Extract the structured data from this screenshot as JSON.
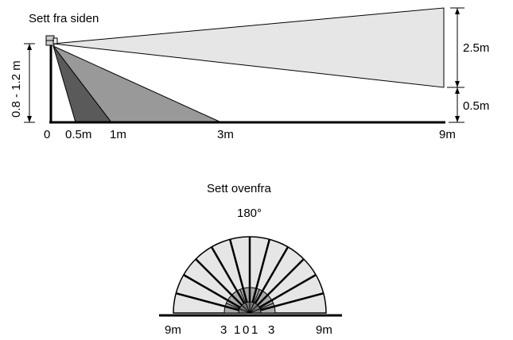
{
  "side_view": {
    "title": "Sett fra siden",
    "height_label": "0.8 - 1.2 m",
    "right_top_label": "2.5m",
    "right_bottom_label": "0.5m",
    "ticks": [
      "0",
      "0.5m",
      "1m",
      "3m",
      "9m"
    ]
  },
  "top_view": {
    "title": "Sett ovenfra",
    "angle_label": "180°",
    "ticks_left": [
      "9m",
      "3",
      "1",
      "0"
    ],
    "ticks_right": [
      "1",
      "3",
      "9m"
    ]
  },
  "colors": {
    "far_zone": "#e6e6e6",
    "mid_zone": "#999999",
    "near_zone": "#5a5a5a",
    "inner_dome": "#aaaaaa",
    "outline": "#000000"
  }
}
